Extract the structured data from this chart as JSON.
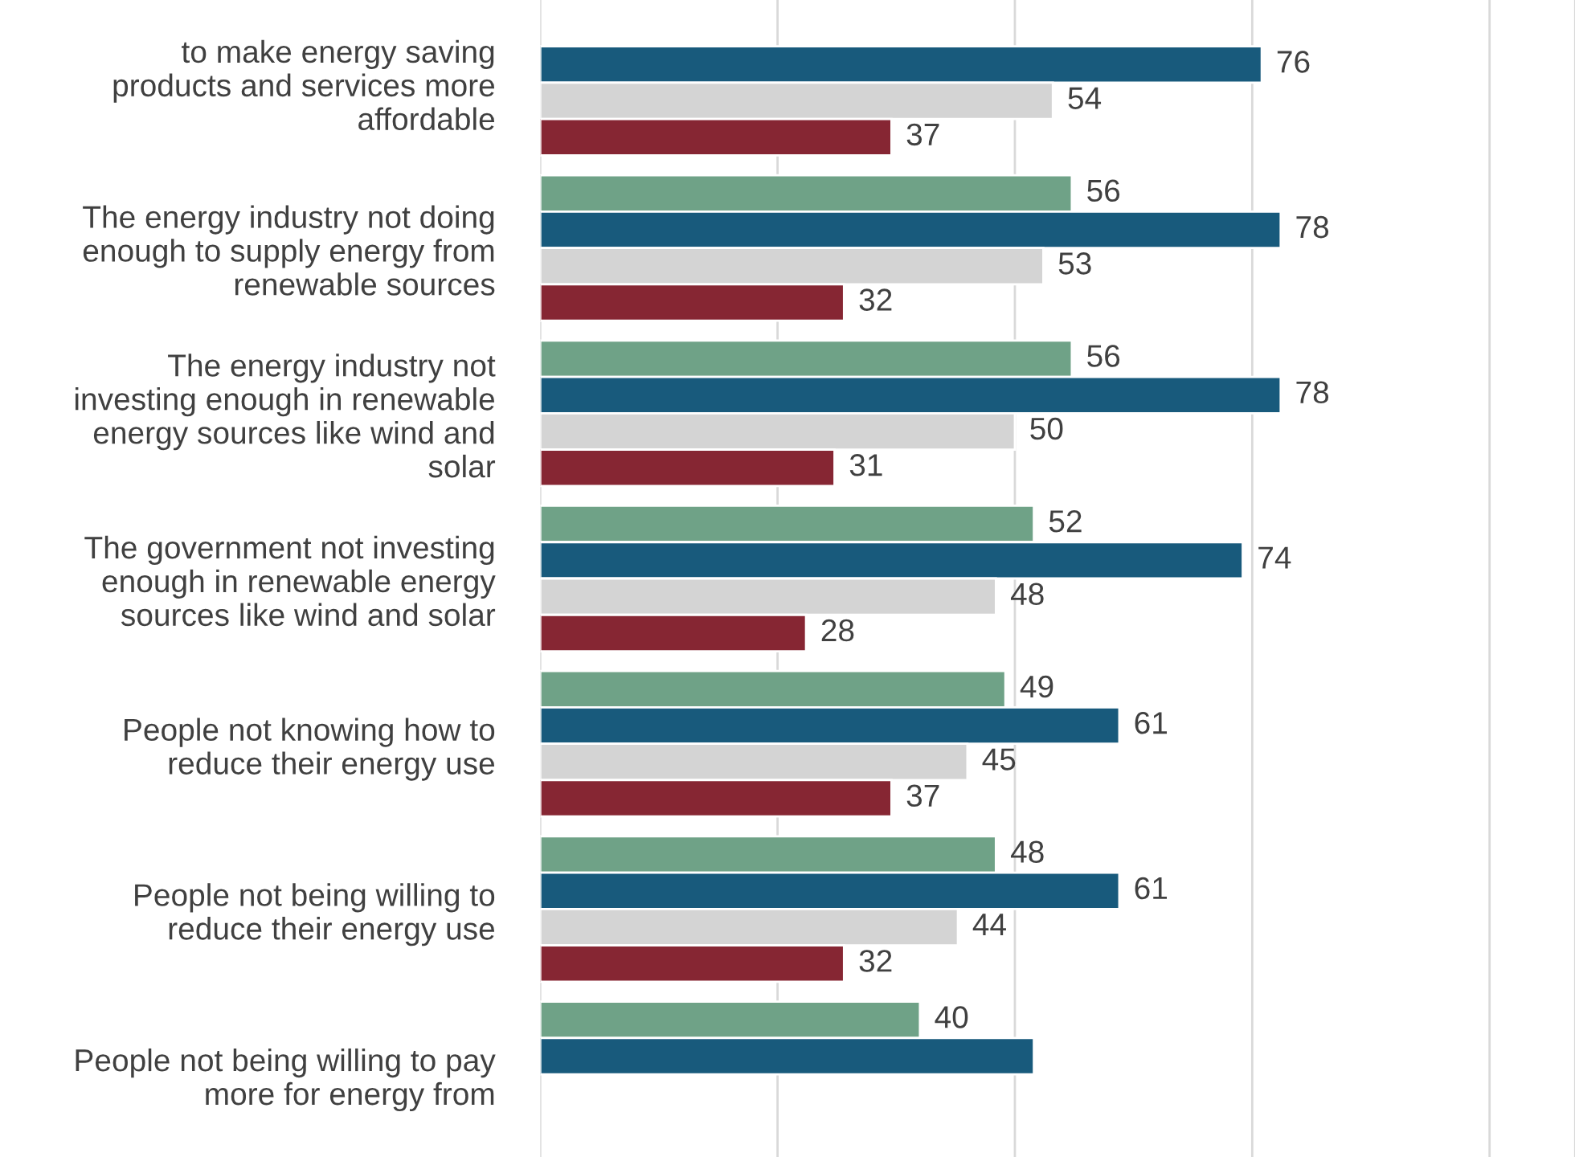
{
  "chart_data": {
    "type": "bar",
    "orientation": "horizontal",
    "categories": [
      "to make energy saving\nproducts and services more\naffordable",
      "The energy industry not doing\nenough to supply energy from\nrenewable sources",
      "The energy industry not\ninvesting enough in renewable\nenergy sources like wind and\nsolar",
      "The government not investing\nenough in renewable energy\nsources like wind and solar",
      "People not knowing how to\nreduce their energy use",
      "People not being willing to\nreduce their energy use",
      "People not being willing to pay\nmore for energy from"
    ],
    "series": [
      {
        "color": "#6fa287",
        "values": [
          null,
          56,
          56,
          52,
          49,
          48,
          40
        ],
        "value_labels": [
          null,
          "56",
          "56",
          "52",
          "49",
          "48",
          "40"
        ]
      },
      {
        "color": "#185a7c",
        "values": [
          76,
          78,
          78,
          74,
          61,
          61,
          52
        ],
        "value_labels": [
          "76",
          "78",
          "78",
          "74",
          "61",
          "61",
          null
        ]
      },
      {
        "color": "#d4d4d4",
        "values": [
          54,
          53,
          50,
          48,
          45,
          44,
          null
        ],
        "value_labels": [
          "54",
          "53",
          "50",
          "48",
          "45",
          "44",
          null
        ]
      },
      {
        "color": "#862633",
        "values": [
          37,
          32,
          31,
          28,
          37,
          32,
          null
        ],
        "value_labels": [
          "37",
          "32",
          "31",
          "28",
          "37",
          "32",
          null
        ]
      }
    ],
    "xlim": [
      0,
      109
    ],
    "xticks": [
      {
        "value": 0,
        "label": null
      },
      {
        "value": 25,
        "label": null
      },
      {
        "value": 50,
        "label": null
      },
      {
        "value": 75,
        "label": null
      },
      {
        "value": 100,
        "label": null
      }
    ],
    "grid": "x",
    "tick_labels": "y"
  }
}
